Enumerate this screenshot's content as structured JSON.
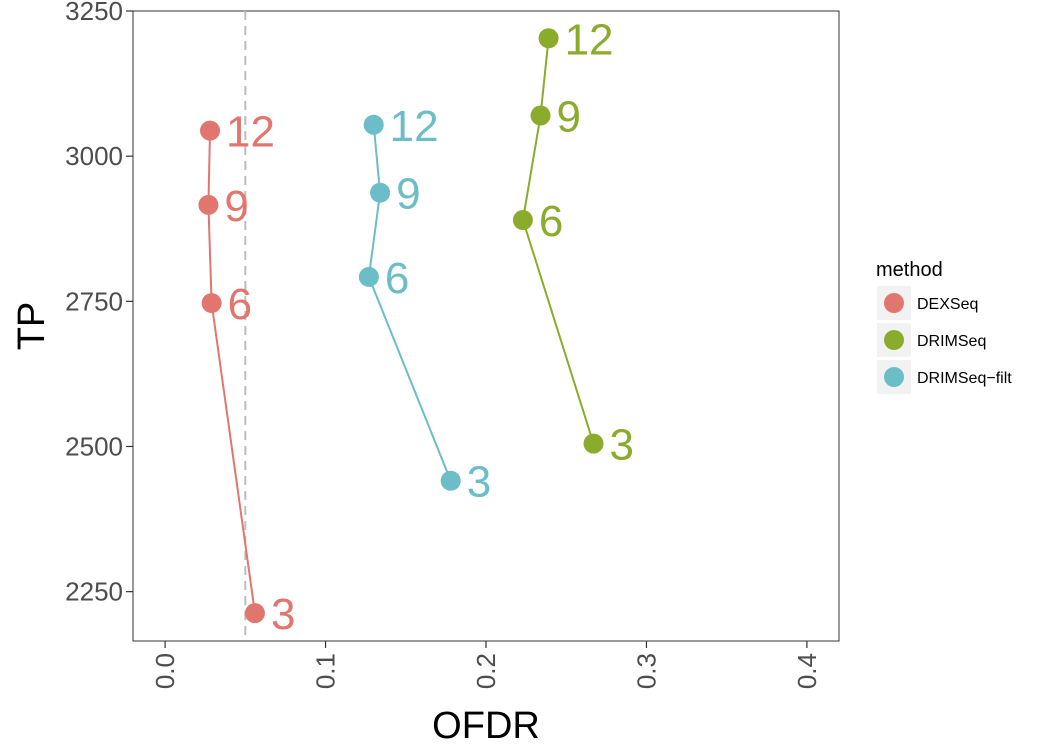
{
  "chart_data": {
    "type": "line",
    "xlabel": "OFDR",
    "ylabel": "TP",
    "xlim": [
      -0.02,
      0.42
    ],
    "ylim": [
      2165,
      3250
    ],
    "x_ticks": [
      0.0,
      0.1,
      0.2,
      0.3,
      0.4
    ],
    "x_tick_labels": [
      "0.0",
      "0.1",
      "0.2",
      "0.3",
      "0.4"
    ],
    "y_ticks": [
      2250,
      2500,
      2750,
      3000,
      3250
    ],
    "y_tick_labels": [
      "2250",
      "2500",
      "2750",
      "3000",
      "3250"
    ],
    "reference_line": {
      "x": 0.05,
      "style": "dashed",
      "color": "#bdbdbd"
    },
    "grid": false,
    "legend": {
      "title": "method",
      "position": "right"
    },
    "series": [
      {
        "name": "DEXSeq",
        "color": "#E0766E",
        "points": [
          {
            "x": 0.056,
            "y": 2213,
            "label": "3"
          },
          {
            "x": 0.029,
            "y": 2747,
            "label": "6"
          },
          {
            "x": 0.027,
            "y": 2916,
            "label": "9"
          },
          {
            "x": 0.028,
            "y": 3044,
            "label": "12"
          }
        ]
      },
      {
        "name": "DRIMSeq",
        "color": "#8BAB2D",
        "points": [
          {
            "x": 0.267,
            "y": 2505,
            "label": "3"
          },
          {
            "x": 0.223,
            "y": 2890,
            "label": "6"
          },
          {
            "x": 0.234,
            "y": 3070,
            "label": "9"
          },
          {
            "x": 0.239,
            "y": 3203,
            "label": "12"
          }
        ]
      },
      {
        "name": "DRIMSeq−filt",
        "color": "#6BBDC7",
        "points": [
          {
            "x": 0.178,
            "y": 2441,
            "label": "3"
          },
          {
            "x": 0.127,
            "y": 2792,
            "label": "6"
          },
          {
            "x": 0.134,
            "y": 2937,
            "label": "9"
          },
          {
            "x": 0.13,
            "y": 3054,
            "label": "12"
          }
        ]
      }
    ]
  }
}
